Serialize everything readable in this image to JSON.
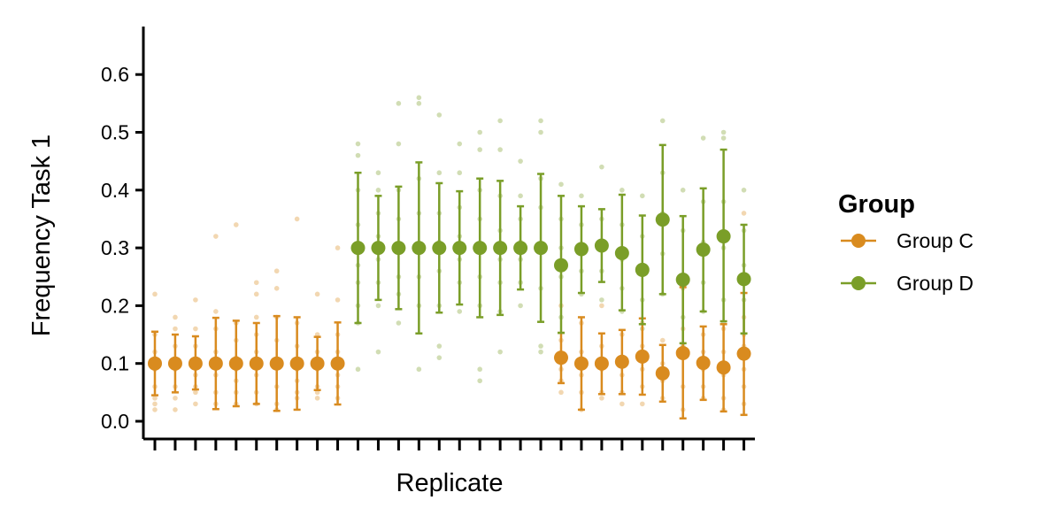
{
  "chart_data": {
    "type": "scatter",
    "title": "",
    "xlabel": "Replicate",
    "ylabel": "Frequency Task 1",
    "ylim": [
      -0.03,
      0.68
    ],
    "y_ticks": [
      "0.0",
      "0.1",
      "0.2",
      "0.3",
      "0.4",
      "0.5",
      "0.6"
    ],
    "x_tick_labels_shown": false,
    "grid": false,
    "legend": {
      "title": "Group",
      "position": "right"
    },
    "series": [
      {
        "name": "Group C",
        "color": "#d98b1f",
        "points": [
          {
            "x": 1,
            "mean": 0.1,
            "lo": 0.045,
            "hi": 0.155
          },
          {
            "x": 2,
            "mean": 0.1,
            "lo": 0.05,
            "hi": 0.15
          },
          {
            "x": 3,
            "mean": 0.1,
            "lo": 0.055,
            "hi": 0.147
          },
          {
            "x": 4,
            "mean": 0.1,
            "lo": 0.021,
            "hi": 0.179
          },
          {
            "x": 5,
            "mean": 0.1,
            "lo": 0.026,
            "hi": 0.174
          },
          {
            "x": 6,
            "mean": 0.1,
            "lo": 0.03,
            "hi": 0.17
          },
          {
            "x": 7,
            "mean": 0.1,
            "lo": 0.018,
            "hi": 0.182
          },
          {
            "x": 8,
            "mean": 0.1,
            "lo": 0.02,
            "hi": 0.18
          },
          {
            "x": 9,
            "mean": 0.1,
            "lo": 0.054,
            "hi": 0.146
          },
          {
            "x": 10,
            "mean": 0.1,
            "lo": 0.029,
            "hi": 0.171
          },
          {
            "x": 21,
            "mean": 0.11,
            "lo": 0.066,
            "hi": 0.153
          },
          {
            "x": 22,
            "mean": 0.1,
            "lo": 0.02,
            "hi": 0.18
          },
          {
            "x": 23,
            "mean": 0.1,
            "lo": 0.047,
            "hi": 0.152
          },
          {
            "x": 24,
            "mean": 0.103,
            "lo": 0.047,
            "hi": 0.158
          },
          {
            "x": 25,
            "mean": 0.112,
            "lo": 0.046,
            "hi": 0.178
          },
          {
            "x": 26,
            "mean": 0.083,
            "lo": 0.034,
            "hi": 0.132
          },
          {
            "x": 27,
            "mean": 0.118,
            "lo": 0.005,
            "hi": 0.232
          },
          {
            "x": 28,
            "mean": 0.101,
            "lo": 0.037,
            "hi": 0.164
          },
          {
            "x": 29,
            "mean": 0.093,
            "lo": 0.017,
            "hi": 0.168
          },
          {
            "x": 30,
            "mean": 0.117,
            "lo": 0.011,
            "hi": 0.222
          }
        ]
      },
      {
        "name": "Group D",
        "color": "#7a9e28",
        "points": [
          {
            "x": 11,
            "mean": 0.3,
            "lo": 0.17,
            "hi": 0.43
          },
          {
            "x": 12,
            "mean": 0.3,
            "lo": 0.21,
            "hi": 0.39
          },
          {
            "x": 13,
            "mean": 0.3,
            "lo": 0.194,
            "hi": 0.406
          },
          {
            "x": 14,
            "mean": 0.3,
            "lo": 0.152,
            "hi": 0.448
          },
          {
            "x": 15,
            "mean": 0.3,
            "lo": 0.188,
            "hi": 0.412
          },
          {
            "x": 16,
            "mean": 0.3,
            "lo": 0.202,
            "hi": 0.398
          },
          {
            "x": 17,
            "mean": 0.3,
            "lo": 0.18,
            "hi": 0.42
          },
          {
            "x": 18,
            "mean": 0.3,
            "lo": 0.184,
            "hi": 0.416
          },
          {
            "x": 19,
            "mean": 0.3,
            "lo": 0.228,
            "hi": 0.372
          },
          {
            "x": 20,
            "mean": 0.3,
            "lo": 0.172,
            "hi": 0.428
          },
          {
            "x": 21,
            "mean": 0.27,
            "lo": 0.153,
            "hi": 0.39
          },
          {
            "x": 22,
            "mean": 0.298,
            "lo": 0.222,
            "hi": 0.372
          },
          {
            "x": 23,
            "mean": 0.304,
            "lo": 0.241,
            "hi": 0.367
          },
          {
            "x": 24,
            "mean": 0.291,
            "lo": 0.192,
            "hi": 0.392
          },
          {
            "x": 25,
            "mean": 0.262,
            "lo": 0.168,
            "hi": 0.356
          },
          {
            "x": 26,
            "mean": 0.349,
            "lo": 0.22,
            "hi": 0.478
          },
          {
            "x": 27,
            "mean": 0.245,
            "lo": 0.135,
            "hi": 0.355
          },
          {
            "x": 28,
            "mean": 0.297,
            "lo": 0.19,
            "hi": 0.403
          },
          {
            "x": 29,
            "mean": 0.32,
            "lo": 0.173,
            "hi": 0.47
          },
          {
            "x": 30,
            "mean": 0.246,
            "lo": 0.152,
            "hi": 0.34
          }
        ]
      }
    ],
    "raw_points_C": [
      [
        1,
        0.22
      ],
      [
        1,
        0.15
      ],
      [
        1,
        0.12
      ],
      [
        1,
        0.09
      ],
      [
        1,
        0.06
      ],
      [
        1,
        0.04
      ],
      [
        1,
        0.03
      ],
      [
        1,
        0.02
      ],
      [
        2,
        0.18
      ],
      [
        2,
        0.16
      ],
      [
        2,
        0.13
      ],
      [
        2,
        0.09
      ],
      [
        2,
        0.06
      ],
      [
        2,
        0.04
      ],
      [
        2,
        0.02
      ],
      [
        3,
        0.21
      ],
      [
        3,
        0.16
      ],
      [
        3,
        0.13
      ],
      [
        3,
        0.08
      ],
      [
        3,
        0.06
      ],
      [
        3,
        0.05
      ],
      [
        3,
        0.03
      ],
      [
        4,
        0.32
      ],
      [
        4,
        0.19
      ],
      [
        4,
        0.16
      ],
      [
        4,
        0.12
      ],
      [
        4,
        0.08
      ],
      [
        4,
        0.05
      ],
      [
        4,
        0.03
      ],
      [
        5,
        0.34
      ],
      [
        5,
        0.17
      ],
      [
        5,
        0.14
      ],
      [
        5,
        0.11
      ],
      [
        5,
        0.09
      ],
      [
        5,
        0.07
      ],
      [
        5,
        0.05
      ],
      [
        5,
        0.03
      ],
      [
        6,
        0.24
      ],
      [
        6,
        0.22
      ],
      [
        6,
        0.18
      ],
      [
        6,
        0.15
      ],
      [
        6,
        0.12
      ],
      [
        6,
        0.08
      ],
      [
        6,
        0.05
      ],
      [
        6,
        0.03
      ],
      [
        7,
        0.26
      ],
      [
        7,
        0.23
      ],
      [
        7,
        0.18
      ],
      [
        7,
        0.14
      ],
      [
        7,
        0.1
      ],
      [
        7,
        0.06
      ],
      [
        7,
        0.03
      ],
      [
        7,
        0.02
      ],
      [
        8,
        0.35
      ],
      [
        8,
        0.17
      ],
      [
        8,
        0.13
      ],
      [
        8,
        0.09
      ],
      [
        8,
        0.07
      ],
      [
        8,
        0.05
      ],
      [
        8,
        0.04
      ],
      [
        9,
        0.22
      ],
      [
        9,
        0.15
      ],
      [
        9,
        0.12
      ],
      [
        9,
        0.09
      ],
      [
        9,
        0.06
      ],
      [
        9,
        0.05
      ],
      [
        9,
        0.04
      ],
      [
        10,
        0.3
      ],
      [
        10,
        0.21
      ],
      [
        10,
        0.15
      ],
      [
        10,
        0.12
      ],
      [
        10,
        0.08
      ],
      [
        10,
        0.06
      ],
      [
        10,
        0.04
      ],
      [
        21,
        0.2
      ],
      [
        21,
        0.14
      ],
      [
        21,
        0.09
      ],
      [
        21,
        0.07
      ],
      [
        21,
        0.05
      ],
      [
        22,
        0.17
      ],
      [
        22,
        0.12
      ],
      [
        22,
        0.08
      ],
      [
        22,
        0.05
      ],
      [
        22,
        0.02
      ],
      [
        23,
        0.2
      ],
      [
        23,
        0.13
      ],
      [
        23,
        0.09
      ],
      [
        23,
        0.05
      ],
      [
        23,
        0.04
      ],
      [
        24,
        0.15
      ],
      [
        24,
        0.11
      ],
      [
        24,
        0.08
      ],
      [
        24,
        0.05
      ],
      [
        24,
        0.03
      ],
      [
        25,
        0.17
      ],
      [
        25,
        0.13
      ],
      [
        25,
        0.09
      ],
      [
        25,
        0.06
      ],
      [
        25,
        0.03
      ],
      [
        26,
        0.14
      ],
      [
        26,
        0.1
      ],
      [
        26,
        0.07
      ],
      [
        26,
        0.04
      ],
      [
        27,
        0.23
      ],
      [
        27,
        0.16
      ],
      [
        27,
        0.11
      ],
      [
        27,
        0.06
      ],
      [
        27,
        0.02
      ],
      [
        28,
        0.15
      ],
      [
        28,
        0.12
      ],
      [
        28,
        0.09
      ],
      [
        28,
        0.06
      ],
      [
        28,
        0.04
      ],
      [
        29,
        0.16
      ],
      [
        29,
        0.12
      ],
      [
        29,
        0.08
      ],
      [
        29,
        0.04
      ],
      [
        29,
        0.02
      ],
      [
        30,
        0.36
      ],
      [
        30,
        0.18
      ],
      [
        30,
        0.13
      ],
      [
        30,
        0.09
      ],
      [
        30,
        0.06
      ],
      [
        30,
        0.03
      ]
    ],
    "raw_points_D": [
      [
        11,
        0.48
      ],
      [
        11,
        0.46
      ],
      [
        11,
        0.4
      ],
      [
        11,
        0.34
      ],
      [
        11,
        0.3
      ],
      [
        11,
        0.27
      ],
      [
        11,
        0.24
      ],
      [
        11,
        0.2
      ],
      [
        11,
        0.17
      ],
      [
        11,
        0.09
      ],
      [
        12,
        0.43
      ],
      [
        12,
        0.4
      ],
      [
        12,
        0.36
      ],
      [
        12,
        0.32
      ],
      [
        12,
        0.28
      ],
      [
        12,
        0.24
      ],
      [
        12,
        0.2
      ],
      [
        12,
        0.12
      ],
      [
        13,
        0.55
      ],
      [
        13,
        0.48
      ],
      [
        13,
        0.4
      ],
      [
        13,
        0.35
      ],
      [
        13,
        0.3
      ],
      [
        13,
        0.25
      ],
      [
        13,
        0.22
      ],
      [
        13,
        0.17
      ],
      [
        14,
        0.56
      ],
      [
        14,
        0.55
      ],
      [
        14,
        0.42
      ],
      [
        14,
        0.36
      ],
      [
        14,
        0.3
      ],
      [
        14,
        0.25
      ],
      [
        14,
        0.2
      ],
      [
        14,
        0.09
      ],
      [
        15,
        0.53
      ],
      [
        15,
        0.43
      ],
      [
        15,
        0.36
      ],
      [
        15,
        0.31
      ],
      [
        15,
        0.26
      ],
      [
        15,
        0.2
      ],
      [
        15,
        0.13
      ],
      [
        15,
        0.11
      ],
      [
        16,
        0.48
      ],
      [
        16,
        0.43
      ],
      [
        16,
        0.37
      ],
      [
        16,
        0.32
      ],
      [
        16,
        0.28
      ],
      [
        16,
        0.24
      ],
      [
        16,
        0.19
      ],
      [
        17,
        0.5
      ],
      [
        17,
        0.47
      ],
      [
        17,
        0.4
      ],
      [
        17,
        0.35
      ],
      [
        17,
        0.3
      ],
      [
        17,
        0.25
      ],
      [
        17,
        0.2
      ],
      [
        17,
        0.09
      ],
      [
        17,
        0.07
      ],
      [
        18,
        0.52
      ],
      [
        18,
        0.47
      ],
      [
        18,
        0.39
      ],
      [
        18,
        0.33
      ],
      [
        18,
        0.28
      ],
      [
        18,
        0.24
      ],
      [
        18,
        0.19
      ],
      [
        18,
        0.12
      ],
      [
        19,
        0.45
      ],
      [
        19,
        0.39
      ],
      [
        19,
        0.35
      ],
      [
        19,
        0.31
      ],
      [
        19,
        0.28
      ],
      [
        19,
        0.24
      ],
      [
        19,
        0.2
      ],
      [
        20,
        0.52
      ],
      [
        20,
        0.5
      ],
      [
        20,
        0.42
      ],
      [
        20,
        0.37
      ],
      [
        20,
        0.3
      ],
      [
        20,
        0.23
      ],
      [
        20,
        0.13
      ],
      [
        20,
        0.12
      ],
      [
        21,
        0.41
      ],
      [
        21,
        0.35
      ],
      [
        21,
        0.3
      ],
      [
        21,
        0.25
      ],
      [
        21,
        0.18
      ],
      [
        22,
        0.39
      ],
      [
        22,
        0.34
      ],
      [
        22,
        0.3
      ],
      [
        22,
        0.26
      ],
      [
        22,
        0.22
      ],
      [
        23,
        0.44
      ],
      [
        23,
        0.35
      ],
      [
        23,
        0.3
      ],
      [
        23,
        0.26
      ],
      [
        23,
        0.21
      ],
      [
        24,
        0.4
      ],
      [
        24,
        0.34
      ],
      [
        24,
        0.28
      ],
      [
        24,
        0.23
      ],
      [
        24,
        0.19
      ],
      [
        25,
        0.39
      ],
      [
        25,
        0.32
      ],
      [
        25,
        0.26
      ],
      [
        25,
        0.21
      ],
      [
        25,
        0.16
      ],
      [
        26,
        0.52
      ],
      [
        26,
        0.43
      ],
      [
        26,
        0.36
      ],
      [
        26,
        0.29
      ],
      [
        26,
        0.22
      ],
      [
        27,
        0.4
      ],
      [
        27,
        0.33
      ],
      [
        27,
        0.25
      ],
      [
        27,
        0.18
      ],
      [
        27,
        0.13
      ],
      [
        28,
        0.49
      ],
      [
        28,
        0.38
      ],
      [
        28,
        0.31
      ],
      [
        28,
        0.24
      ],
      [
        28,
        0.19
      ],
      [
        29,
        0.5
      ],
      [
        29,
        0.49
      ],
      [
        29,
        0.38
      ],
      [
        29,
        0.3
      ],
      [
        29,
        0.21
      ],
      [
        29,
        0.17
      ],
      [
        30,
        0.4
      ],
      [
        30,
        0.33
      ],
      [
        30,
        0.27
      ],
      [
        30,
        0.21
      ],
      [
        30,
        0.15
      ]
    ]
  }
}
